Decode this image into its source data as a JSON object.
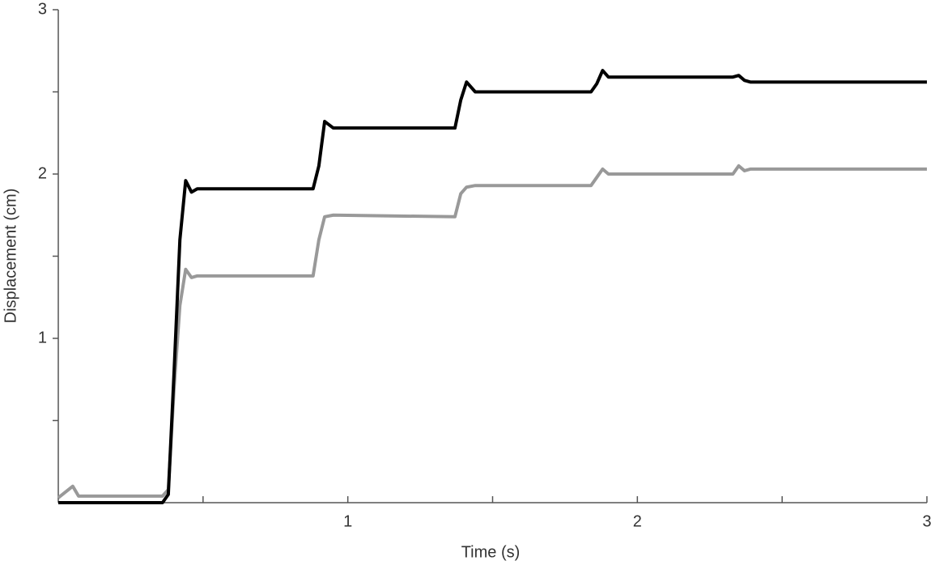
{
  "chart_data": {
    "type": "line",
    "xlabel": "Time (s)",
    "ylabel": "Displacement (cm)",
    "x": [
      0,
      0.05,
      0.07,
      0.36,
      0.38,
      0.4,
      0.42,
      0.44,
      0.46,
      0.48,
      0.88,
      0.9,
      0.92,
      0.95,
      1.37,
      1.39,
      1.41,
      1.44,
      1.84,
      1.86,
      1.88,
      1.9,
      2.33,
      2.35,
      2.37,
      2.39,
      3
    ],
    "series": [
      {
        "color": "#999999",
        "values": [
          0.03,
          0.1,
          0.04,
          0.04,
          0.08,
          0.7,
          1.2,
          1.42,
          1.37,
          1.38,
          1.38,
          1.6,
          1.74,
          1.75,
          1.74,
          1.88,
          1.92,
          1.93,
          1.93,
          1.98,
          2.03,
          2.0,
          2.0,
          2.05,
          2.02,
          2.03,
          2.03
        ]
      },
      {
        "color": "#000000",
        "values": [
          0,
          0,
          0,
          0,
          0.05,
          0.8,
          1.6,
          1.96,
          1.89,
          1.91,
          1.91,
          2.05,
          2.32,
          2.28,
          2.28,
          2.45,
          2.56,
          2.5,
          2.5,
          2.55,
          2.63,
          2.59,
          2.59,
          2.6,
          2.57,
          2.56,
          2.56
        ]
      }
    ],
    "xlim": [
      0,
      3
    ],
    "ylim": [
      0,
      3
    ],
    "xticks": [
      1,
      2,
      3
    ],
    "yticks": [
      1,
      2,
      3
    ],
    "xminorticks": [
      0.5,
      1.5,
      2.5
    ],
    "yminorticks": [
      0.5,
      1.5,
      2.5
    ],
    "grid": false
  }
}
